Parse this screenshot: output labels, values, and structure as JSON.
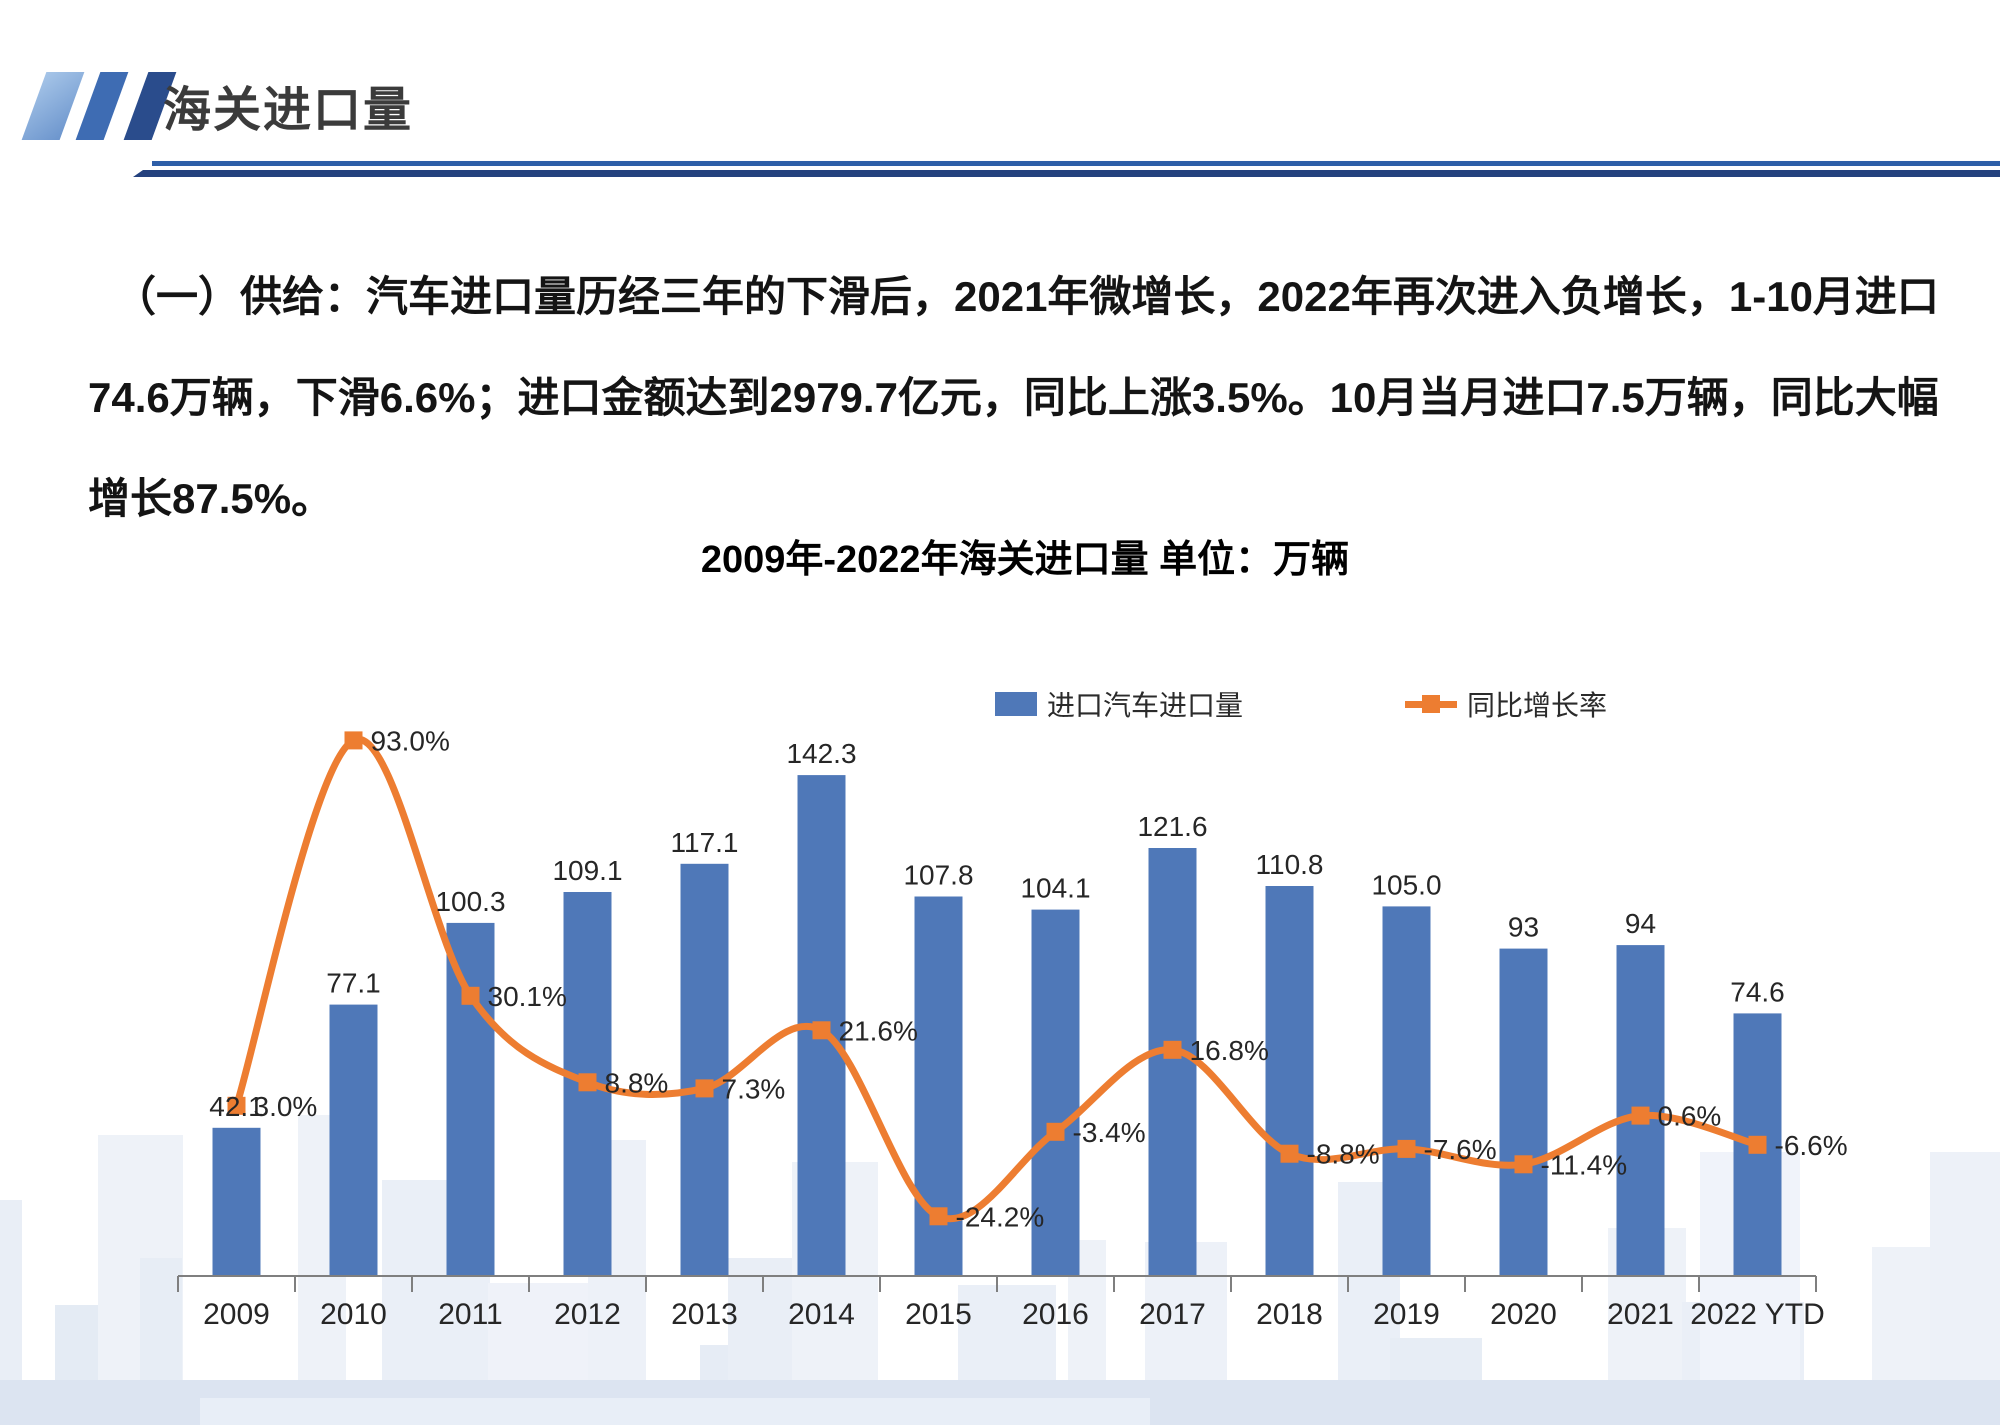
{
  "header": {
    "title": "海关进口量"
  },
  "intro": {
    "lines": [
      "（一）供给：汽车进口量历经三年的下滑后，2021年微增长，2022年再次进入负增长，1-10月进口",
      "74.6万辆，下滑6.6%；进口金额达到2979.7亿元，同比上涨3.5%。10月当月进口7.5万辆，同比大幅",
      "增长87.5%。"
    ]
  },
  "chart_data": {
    "type": "bar+line",
    "title": "2009年-2022年海关进口量 单位：万辆",
    "categories": [
      "2009",
      "2010",
      "2011",
      "2012",
      "2013",
      "2014",
      "2015",
      "2016",
      "2017",
      "2018",
      "2019",
      "2020",
      "2021",
      "2022 YTD"
    ],
    "series": [
      {
        "name": "进口汽车进口量",
        "type": "bar",
        "unit": "万辆",
        "values": [
          42.1,
          77.1,
          100.3,
          109.1,
          117.1,
          142.3,
          107.8,
          104.1,
          121.6,
          110.8,
          105.0,
          93,
          94,
          74.6
        ],
        "labels": [
          "42.1",
          "77.1",
          "100.3",
          "109.1",
          "117.1",
          "142.3",
          "107.8",
          "104.1",
          "121.6",
          "110.8",
          "105.0",
          "93",
          "94",
          "74.6"
        ]
      },
      {
        "name": "同比增长率",
        "type": "line",
        "values": [
          3.0,
          93.0,
          30.1,
          8.8,
          7.3,
          21.6,
          -24.2,
          -3.4,
          16.8,
          -8.8,
          -7.6,
          -11.4,
          0.6,
          -6.6
        ],
        "labels": [
          "3.0%",
          "93.0%",
          "30.1%",
          "8.8%",
          "7.3%",
          "21.6%",
          "-24.2%",
          "-3.4%",
          "16.8%",
          "-8.8%",
          "-7.6%",
          "-11.4%",
          "0.6%",
          "-6.6%"
        ]
      }
    ],
    "colors": {
      "bar": "#4f78b8",
      "line": "#ed7d31"
    },
    "legend_position": "top",
    "grid": false,
    "value_axis_visible": false
  }
}
